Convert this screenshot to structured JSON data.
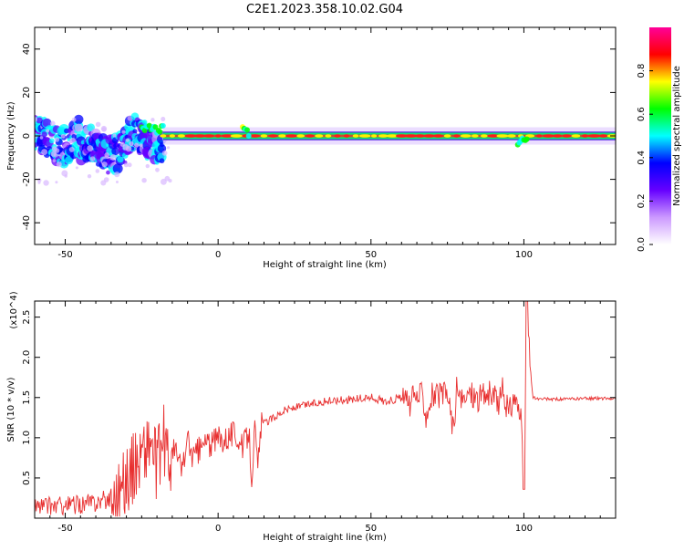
{
  "figure_title": "C2E1.2023.358.10.02.G04",
  "colorbar": {
    "label": "Normalized spectral amplitude",
    "ticks": [
      0.0,
      0.2,
      0.4,
      0.6,
      0.8
    ],
    "tick_labels": [
      "0.0",
      "0.2",
      "0.4",
      "0.6",
      "0.8"
    ]
  },
  "chart_data": [
    {
      "type": "heatmap",
      "title": "",
      "xlabel": "Height of straight line (km)",
      "ylabel": "Frequency (Hz)",
      "xlim": [
        -60,
        130
      ],
      "ylim": [
        -50,
        50
      ],
      "xticks": [
        -50,
        0,
        50,
        100
      ],
      "xtick_labels": [
        "-50",
        "0",
        "50",
        "100"
      ],
      "yticks": [
        -40,
        -20,
        0,
        20,
        40
      ],
      "ytick_labels": [
        "-40",
        "-20",
        "0",
        "20",
        "40"
      ],
      "value_range": [
        0,
        1
      ],
      "colormap": [
        "#ffffff",
        "#cc99ff",
        "#6600ff",
        "#0000ff",
        "#00ffff",
        "#00ff00",
        "#ffff00",
        "#ff0000",
        "#ff0099"
      ],
      "description_segments": [
        {
          "x": [
            -60,
            -18
          ],
          "center": -2,
          "spread": 8,
          "level": 0.35
        },
        {
          "x": [
            -25,
            -18
          ],
          "center": 3,
          "spread": 4,
          "level": 0.45
        },
        {
          "x": [
            -18,
            130
          ],
          "center": 0,
          "spread": 2,
          "level": 0.9
        },
        {
          "x": [
            8,
            10
          ],
          "center": 2,
          "spread": 5,
          "level": 0.5
        },
        {
          "x": [
            98,
            101
          ],
          "center": -3,
          "spread": 5,
          "level": 0.5
        }
      ]
    },
    {
      "type": "line",
      "title": "",
      "xlabel": "Height of straight line (km)",
      "ylabel": "SNR (10 * v/v)",
      "yscale_label": "(x10^4)",
      "xlim": [
        -60,
        130
      ],
      "ylim": [
        0,
        2.7
      ],
      "xticks": [
        -50,
        0,
        50,
        100
      ],
      "xtick_labels": [
        "-50",
        "0",
        "50",
        "100"
      ],
      "yticks": [
        0.5,
        1.0,
        1.5,
        2.0,
        2.5
      ],
      "ytick_labels": [
        "0.5",
        "1.0",
        "1.5",
        "2.0",
        "2.5"
      ],
      "series": [
        {
          "color": "#e83030",
          "x": [
            -60,
            -55,
            -50,
            -45,
            -40,
            -35,
            -32,
            -30,
            -28,
            -26,
            -24,
            -22,
            -20,
            -18,
            -16,
            -14,
            -12,
            -10,
            -8,
            -6,
            -4,
            -2,
            0,
            2,
            4,
            6,
            8,
            10,
            11,
            12,
            13,
            14,
            16,
            18,
            20,
            22,
            25,
            30,
            35,
            40,
            45,
            50,
            55,
            60,
            62,
            65,
            67,
            68,
            70,
            72,
            75,
            77,
            78,
            80,
            82,
            85,
            88,
            90,
            92,
            93,
            95,
            97,
            99,
            100,
            101,
            102,
            103,
            105,
            110,
            115,
            120,
            125,
            130
          ],
          "y": [
            0.15,
            0.15,
            0.16,
            0.17,
            0.2,
            0.25,
            0.35,
            0.5,
            0.6,
            0.75,
            0.85,
            0.95,
            0.6,
            1.0,
            0.7,
            0.85,
            0.6,
            0.95,
            0.75,
            0.85,
            0.95,
            0.9,
            1.0,
            1.0,
            1.05,
            1.05,
            0.85,
            1.1,
            0.55,
            1.1,
            0.6,
            1.15,
            1.2,
            1.25,
            1.3,
            1.35,
            1.37,
            1.42,
            1.45,
            1.47,
            1.48,
            1.5,
            1.45,
            1.5,
            1.4,
            1.52,
            1.55,
            1.3,
            1.55,
            1.5,
            1.55,
            1.1,
            1.6,
            1.4,
            1.58,
            1.5,
            1.55,
            1.5,
            1.45,
            1.6,
            1.3,
            1.55,
            1.2,
            0.4,
            2.7,
            1.9,
            1.5,
            1.48,
            1.48,
            1.48,
            1.49,
            1.49,
            1.49
          ]
        }
      ]
    }
  ]
}
